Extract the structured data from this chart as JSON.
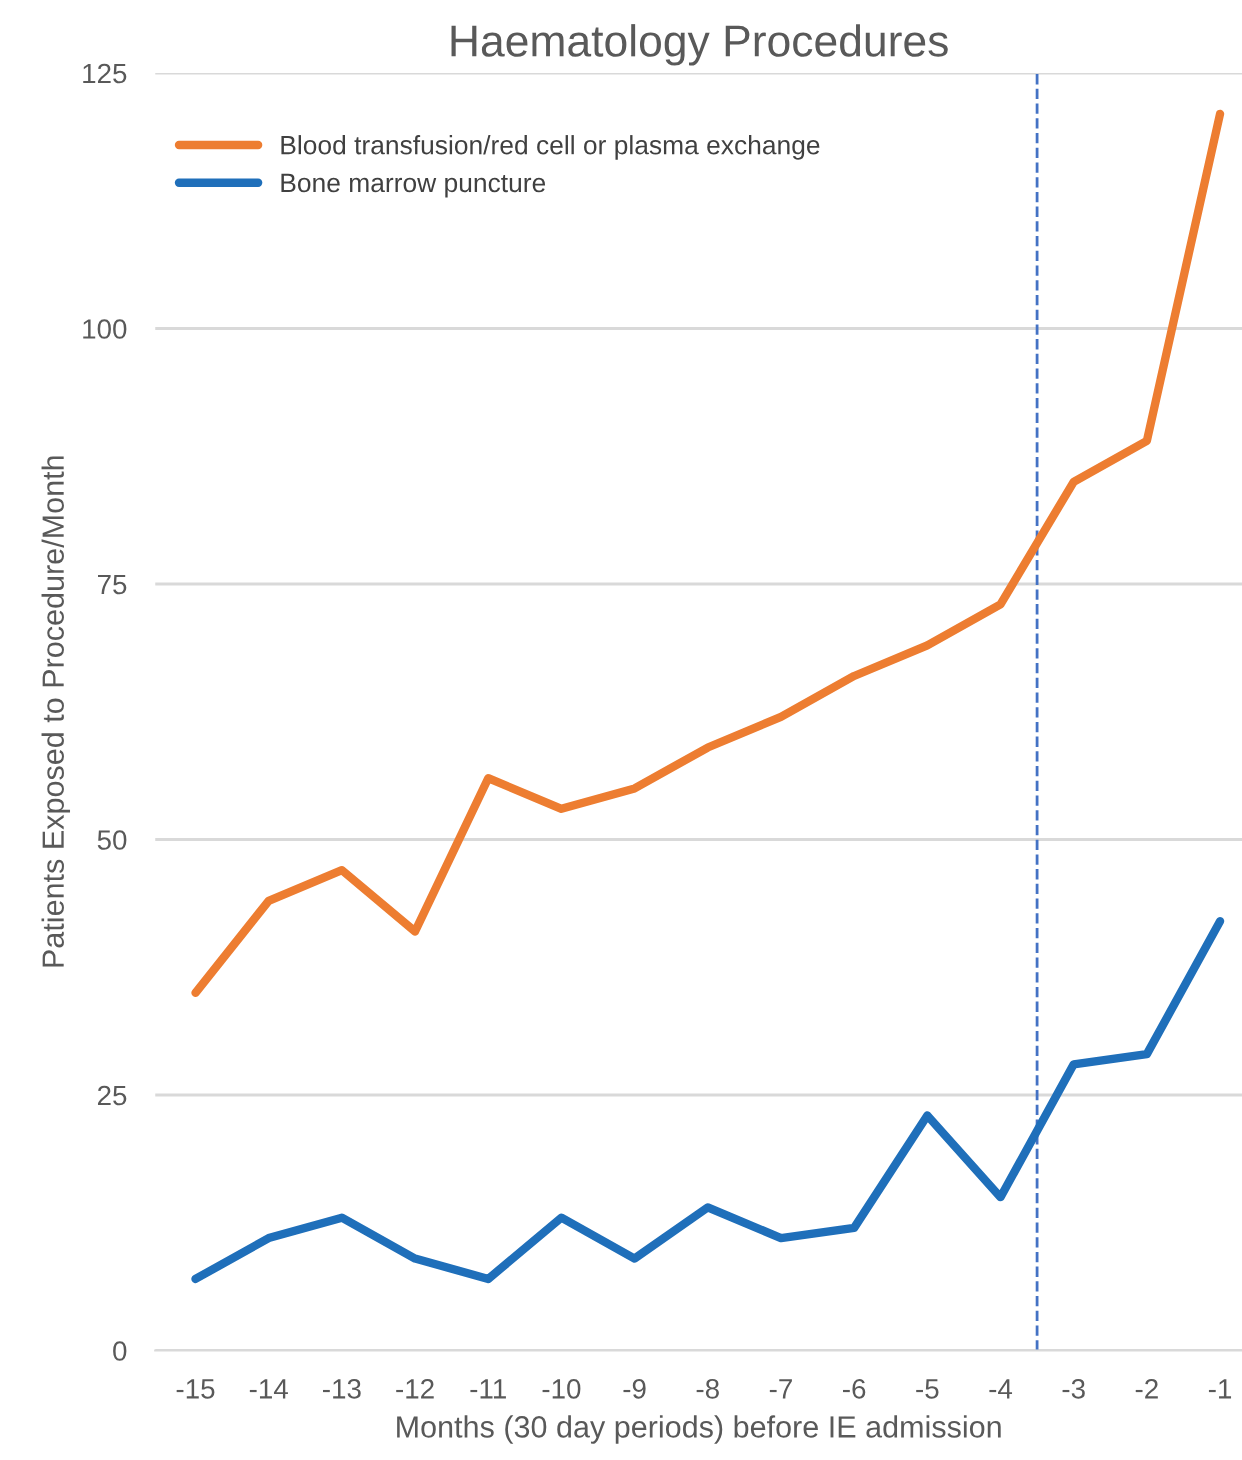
{
  "chart_data": {
    "type": "line",
    "title": "Haematology Procedures",
    "xlabel": "Months (30 day periods) before IE admission",
    "ylabel": "Patients Exposed to Procedure/Month",
    "x": [
      -15,
      -14,
      -13,
      -12,
      -11,
      -10,
      -9,
      -8,
      -7,
      -6,
      -5,
      -4,
      -3,
      -2,
      -1
    ],
    "series": [
      {
        "name": "Blood transfusion/red cell or plasma exchange",
        "color": "#ed7d31",
        "values": [
          35,
          44,
          47,
          41,
          56,
          53,
          55,
          59,
          62,
          66,
          69,
          73,
          85,
          89,
          121
        ]
      },
      {
        "name": "Bone marrow puncture",
        "color": "#1f6fba",
        "values": [
          7,
          11,
          13,
          9,
          7,
          13,
          9,
          14,
          11,
          12,
          23,
          15,
          28,
          29,
          42
        ]
      }
    ],
    "xlim": [
      -15.55,
      -0.7
    ],
    "xticks": [
      -15,
      -14,
      -13,
      -12,
      -11,
      -10,
      -9,
      -8,
      -7,
      -6,
      -5,
      -4,
      -3,
      -2,
      -1
    ],
    "ylim": [
      0,
      125
    ],
    "yticks": [
      0,
      25,
      50,
      75,
      100,
      125
    ],
    "ref_lines": [
      {
        "axis": "x",
        "value": -3.5,
        "color": "#4472c4",
        "line_style": "dashed"
      }
    ],
    "grid": "y",
    "legend": "top left",
    "marker": "none",
    "line_style": "solid"
  }
}
